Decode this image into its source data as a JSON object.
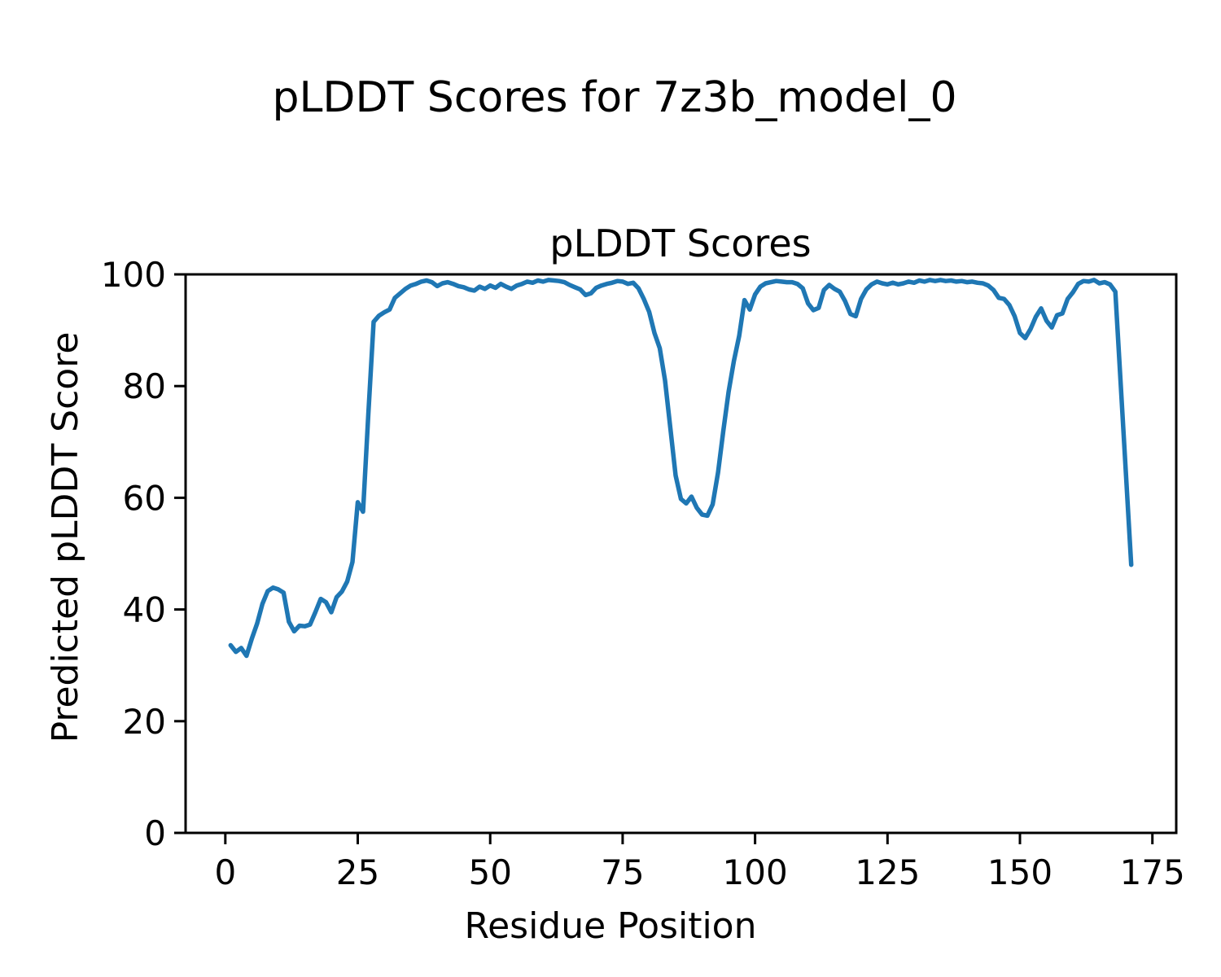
{
  "figure": {
    "suptitle": "pLDDT Scores for 7z3b_model_0",
    "background": "#ffffff",
    "text_color": "#000000"
  },
  "axes": {
    "title": "pLDDT Scores",
    "xlabel": "Residue Position",
    "ylabel": "Predicted pLDDT Score"
  },
  "chart_data": {
    "type": "line",
    "title": "pLDDT Scores",
    "suptitle": "pLDDT Scores for 7z3b_model_0",
    "xlabel": "Residue Position",
    "ylabel": "Predicted pLDDT Score",
    "xlim": [
      -7.5,
      179.5
    ],
    "ylim": [
      0,
      100
    ],
    "xticks": [
      0,
      25,
      50,
      75,
      100,
      125,
      150,
      175
    ],
    "yticks": [
      0,
      20,
      40,
      60,
      80,
      100
    ],
    "grid": false,
    "legend": false,
    "line_color": "#1f77b4",
    "series": [
      {
        "name": "pLDDT",
        "color": "#1f77b4",
        "x_start": 1,
        "values": [
          33.6,
          32.4,
          33.1,
          31.7,
          34.8,
          37.5,
          41.0,
          43.3,
          43.9,
          43.6,
          43.0,
          37.8,
          36.1,
          37.1,
          37.0,
          37.3,
          39.5,
          41.9,
          41.3,
          39.5,
          42.2,
          43.2,
          45.0,
          48.5,
          59.2,
          57.5,
          75.0,
          91.5,
          92.6,
          93.2,
          93.7,
          95.8,
          96.6,
          97.4,
          98.0,
          98.3,
          98.7,
          98.9,
          98.6,
          97.9,
          98.4,
          98.6,
          98.3,
          97.9,
          97.7,
          97.3,
          97.1,
          97.8,
          97.4,
          98.0,
          97.6,
          98.3,
          97.8,
          97.4,
          98.0,
          98.3,
          98.7,
          98.5,
          98.9,
          98.7,
          99.0,
          98.9,
          98.8,
          98.6,
          98.1,
          97.7,
          97.3,
          96.3,
          96.6,
          97.6,
          98.0,
          98.3,
          98.5,
          98.8,
          98.7,
          98.3,
          98.5,
          97.5,
          95.6,
          93.3,
          89.5,
          86.8,
          81.0,
          72.5,
          64.0,
          59.8,
          59.0,
          60.2,
          58.2,
          57.0,
          56.8,
          58.8,
          64.5,
          72.0,
          79.0,
          84.5,
          89.0,
          95.4,
          93.7,
          96.4,
          97.8,
          98.4,
          98.6,
          98.8,
          98.7,
          98.6,
          98.6,
          98.3,
          97.5,
          94.8,
          93.6,
          94.0,
          97.2,
          98.1,
          97.4,
          96.9,
          95.2,
          92.9,
          92.5,
          95.6,
          97.3,
          98.2,
          98.7,
          98.4,
          98.2,
          98.5,
          98.2,
          98.4,
          98.7,
          98.5,
          98.9,
          98.7,
          99.0,
          98.8,
          99.0,
          98.8,
          98.9,
          98.7,
          98.8,
          98.6,
          98.7,
          98.5,
          98.4,
          98.0,
          97.2,
          95.8,
          95.6,
          94.5,
          92.5,
          89.5,
          88.6,
          90.2,
          92.4,
          93.9,
          91.7,
          90.5,
          92.7,
          93.0,
          95.6,
          96.8,
          98.3,
          98.8,
          98.7,
          99.0,
          98.4,
          98.6,
          98.2,
          96.9,
          80.6,
          64.3,
          48.0
        ]
      }
    ]
  }
}
